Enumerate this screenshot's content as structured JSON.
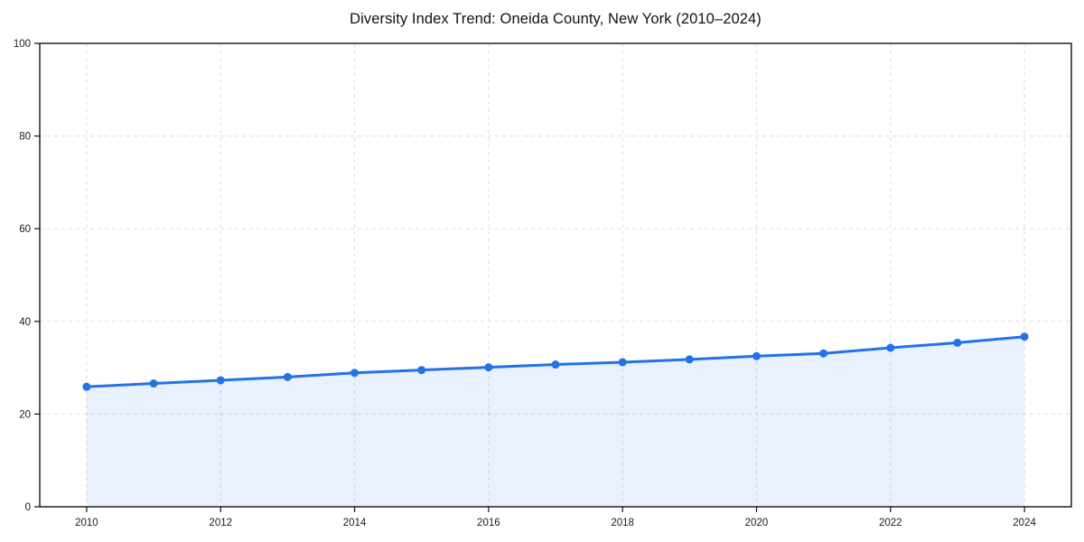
{
  "chart_data": {
    "type": "area",
    "title": "Diversity Index Trend: Oneida County, New York (2010–2024)",
    "x": [
      2010,
      2011,
      2012,
      2013,
      2014,
      2015,
      2016,
      2017,
      2018,
      2019,
      2020,
      2021,
      2022,
      2023,
      2024
    ],
    "series": [
      {
        "name": "Diversity Index",
        "values": [
          25.9,
          26.6,
          27.3,
          28.0,
          28.9,
          29.5,
          30.1,
          30.7,
          31.2,
          31.8,
          32.5,
          33.1,
          34.3,
          35.4,
          36.7
        ]
      }
    ],
    "xlabel": "",
    "ylabel": "",
    "xlim": [
      2009.3,
      2024.7
    ],
    "ylim": [
      0,
      100
    ],
    "yticks": [
      0,
      20,
      40,
      60,
      80,
      100
    ],
    "xticks": [
      2010,
      2012,
      2014,
      2016,
      2018,
      2020,
      2022,
      2024
    ],
    "grid": true,
    "grid_style": "dashed",
    "legend_position": "none",
    "line_color": "#2272E8",
    "marker_color": "#2272E8",
    "fill_color": "#2272E8",
    "fill_opacity": 0.1,
    "grid_color": "#DCDCDC",
    "axis_color": "#111111",
    "tick_label_color": "#1A1A1A",
    "background_color": "#FFFFFF"
  }
}
